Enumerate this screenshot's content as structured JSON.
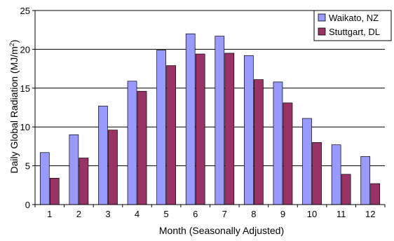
{
  "chart_data": {
    "type": "bar",
    "xlabel": "Month (Seasonally Adjusted)",
    "ylabel_parts": {
      "main": "Daily Global Radiation (MJ/m",
      "sup": "2",
      "end": ")"
    },
    "categories": [
      "1",
      "2",
      "3",
      "4",
      "5",
      "6",
      "7",
      "8",
      "9",
      "10",
      "11",
      "12"
    ],
    "ylim": [
      0,
      25
    ],
    "yticks": [
      "0",
      "5",
      "10",
      "15",
      "20",
      "25"
    ],
    "grid": true,
    "legend_position": "top-right",
    "series": [
      {
        "name": "Waikato, NZ",
        "color": "#9999ff",
        "values": [
          6.7,
          9.0,
          12.7,
          15.9,
          19.9,
          22.0,
          21.7,
          19.2,
          15.8,
          11.1,
          7.7,
          6.2
        ]
      },
      {
        "name": "Stuttgart, DL",
        "color": "#993366",
        "values": [
          3.4,
          6.0,
          9.6,
          14.6,
          17.9,
          19.4,
          19.5,
          16.1,
          13.1,
          8.0,
          3.9,
          2.7
        ]
      }
    ]
  }
}
